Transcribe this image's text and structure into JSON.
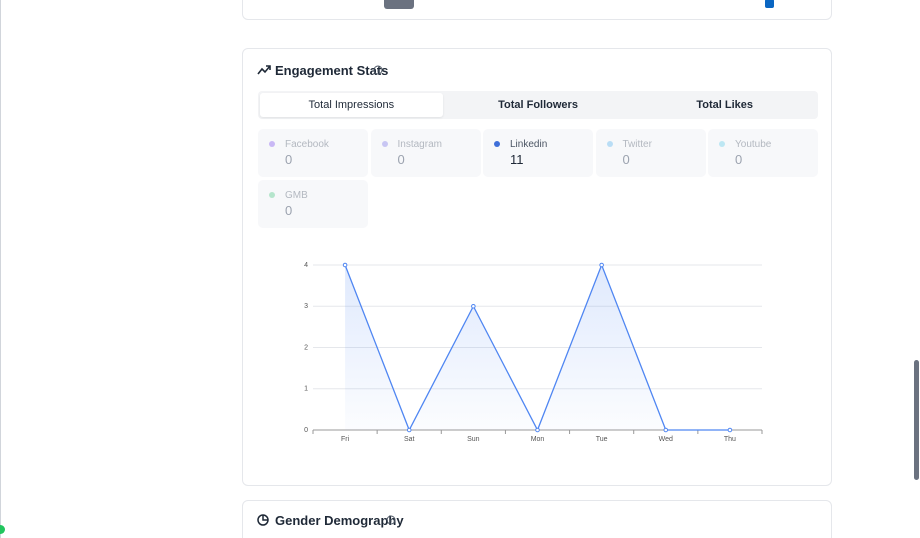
{
  "card_title": "Engagement Stats",
  "tabs": [
    "Total Impressions",
    "Total Followers",
    "Total Likes"
  ],
  "platforms": [
    {
      "name": "Facebook",
      "value": 0,
      "color": "#c9b8f5"
    },
    {
      "name": "Instagram",
      "value": 0,
      "color": "#c8c6f3"
    },
    {
      "name": "Linkedin",
      "value": 11,
      "color": "#3f6fd9"
    },
    {
      "name": "Twitter",
      "value": 0,
      "color": "#b9ddf5"
    },
    {
      "name": "Youtube",
      "value": 0,
      "color": "#bde7f3"
    },
    {
      "name": "GMB",
      "value": 0,
      "color": "#b5e5cc"
    }
  ],
  "chart_data": {
    "type": "line",
    "categories": [
      "Fri",
      "Sat",
      "Sun",
      "Mon",
      "Tue",
      "Wed",
      "Thu"
    ],
    "series": [
      {
        "color": "#4f86f2",
        "values": [
          4,
          0,
          3,
          0,
          4,
          0,
          0
        ]
      }
    ],
    "ylim": [
      0,
      4
    ],
    "yticks": [
      0,
      1,
      2,
      3,
      4
    ],
    "grid": true
  },
  "next_card_title": "Gender Demography"
}
